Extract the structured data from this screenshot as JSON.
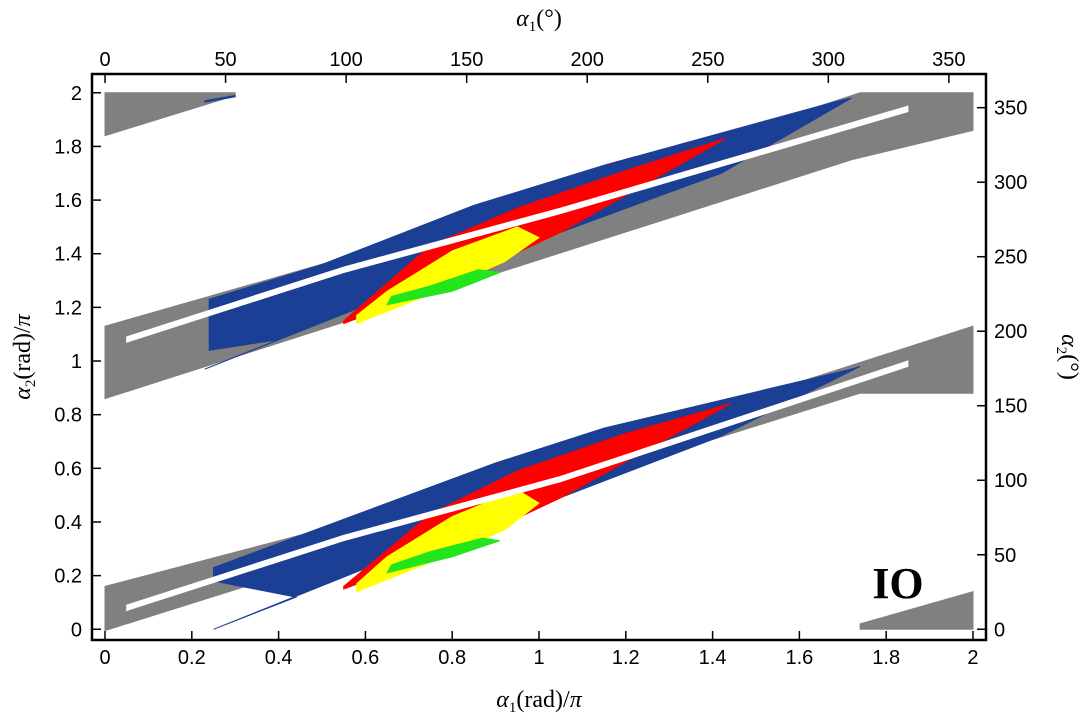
{
  "chart_data": {
    "type": "scatter",
    "title": "",
    "xlabel": "α1(rad)/π",
    "ylabel": "α2(rad)/π",
    "x2label": "α1(°)",
    "y2label": "α2(°)",
    "xlim": [
      -0.03,
      2.03
    ],
    "ylim": [
      -0.04,
      2.07
    ],
    "x2lim": [
      -5.4,
      365.4
    ],
    "y2lim": [
      -7.2,
      372.6
    ],
    "xticks": [
      "0",
      "0.2",
      "0.4",
      "0.6",
      "0.8",
      "1",
      "1.2",
      "1.4",
      "1.6",
      "1.8",
      "2"
    ],
    "yticks": [
      "0",
      "0.2",
      "0.4",
      "0.6",
      "0.8",
      "1",
      "1.2",
      "1.4",
      "1.6",
      "1.8",
      "2"
    ],
    "x2ticks": [
      "0",
      "50",
      "100",
      "150",
      "200",
      "250",
      "300",
      "350"
    ],
    "y2ticks": [
      "0",
      "50",
      "100",
      "150",
      "200",
      "250",
      "300",
      "350"
    ],
    "annotation": "IO",
    "grid": false,
    "series": [
      {
        "name": "gray",
        "color": "#808080",
        "regions": [
          [
            [
              0,
              0.16
            ],
            [
              0,
              -0.005
            ],
            [
              1.74,
              0.88
            ],
            [
              2,
              0.88
            ],
            [
              2,
              1.13
            ],
            [
              1.02,
              0.62
            ],
            [
              0.8,
              0.5
            ]
          ],
          [
            [
              0,
              1.13
            ],
            [
              0,
              0.86
            ],
            [
              1.72,
              1.75
            ],
            [
              2,
              1.86
            ],
            [
              2,
              2
            ],
            [
              1.74,
              2
            ],
            [
              0.8,
              1.5
            ]
          ],
          [
            [
              0,
              2
            ],
            [
              0,
              1.84
            ],
            [
              0.3,
              1.99
            ],
            [
              0.3,
              2
            ]
          ],
          [
            [
              1.74,
              0
            ],
            [
              2,
              0
            ],
            [
              2,
              0.14
            ],
            [
              1.74,
              0.02
            ]
          ]
        ]
      },
      {
        "name": "blue",
        "color": "#1b3f94",
        "regions": [
          [
            [
              0.25,
              0
            ],
            [
              0.62,
              0.24
            ],
            [
              1.0,
              0.46
            ],
            [
              1.42,
              0.72
            ],
            [
              1.74,
              0.98
            ],
            [
              1.72,
              0.97
            ],
            [
              1.15,
              0.75
            ],
            [
              0.9,
              0.62
            ],
            [
              0.5,
              0.38
            ],
            [
              0.25,
              0.23
            ],
            [
              0.25,
              0.18
            ],
            [
              0.44,
              0.12
            ]
          ],
          [
            [
              0.23,
              0.97
            ],
            [
              0.62,
              1.22
            ],
            [
              1.0,
              1.45
            ],
            [
              1.42,
              1.7
            ],
            [
              1.72,
              1.98
            ],
            [
              1.69,
              1.97
            ],
            [
              1.15,
              1.73
            ],
            [
              0.85,
              1.58
            ],
            [
              0.5,
              1.36
            ],
            [
              0.24,
              1.23
            ],
            [
              0.24,
              1.04
            ],
            [
              0.4,
              1.08
            ]
          ],
          [
            [
              0.23,
              1.97
            ],
            [
              0.3,
              1.99
            ],
            [
              0.3,
              1.985
            ],
            [
              0.23,
              1.965
            ]
          ]
        ]
      },
      {
        "name": "red",
        "color": "#ff0000",
        "regions": [
          [
            [
              0.55,
              0.15
            ],
            [
              0.8,
              0.3
            ],
            [
              1.05,
              0.49
            ],
            [
              1.44,
              0.84
            ],
            [
              1.2,
              0.73
            ],
            [
              0.95,
              0.59
            ],
            [
              0.75,
              0.43
            ],
            [
              0.55,
              0.16
            ]
          ],
          [
            [
              0.55,
              1.14
            ],
            [
              0.8,
              1.29
            ],
            [
              1.05,
              1.48
            ],
            [
              1.43,
              1.83
            ],
            [
              1.2,
              1.71
            ],
            [
              0.95,
              1.57
            ],
            [
              0.75,
              1.43
            ],
            [
              0.55,
              1.15
            ]
          ]
        ]
      },
      {
        "name": "yellow",
        "color": "#ffff00",
        "regions": [
          [
            [
              0.58,
              0.14
            ],
            [
              0.75,
              0.25
            ],
            [
              0.92,
              0.37
            ],
            [
              1.0,
              0.47
            ],
            [
              0.95,
              0.52
            ],
            [
              0.8,
              0.42
            ],
            [
              0.65,
              0.27
            ],
            [
              0.58,
              0.17
            ]
          ],
          [
            [
              0.58,
              1.14
            ],
            [
              0.75,
              1.25
            ],
            [
              0.92,
              1.37
            ],
            [
              1.0,
              1.46
            ],
            [
              0.95,
              1.5
            ],
            [
              0.8,
              1.41
            ],
            [
              0.65,
              1.26
            ],
            [
              0.58,
              1.17
            ]
          ]
        ]
      },
      {
        "name": "green",
        "color": "#22e51b",
        "regions": [
          [
            [
              0.65,
              0.21
            ],
            [
              0.8,
              0.27
            ],
            [
              0.91,
              0.33
            ],
            [
              0.87,
              0.34
            ],
            [
              0.75,
              0.29
            ],
            [
              0.66,
              0.24
            ]
          ],
          [
            [
              0.65,
              1.21
            ],
            [
              0.8,
              1.26
            ],
            [
              0.91,
              1.33
            ],
            [
              0.86,
              1.34
            ],
            [
              0.75,
              1.28
            ],
            [
              0.66,
              1.24
            ]
          ]
        ]
      },
      {
        "name": "white-gaps",
        "color": "#ffffff",
        "regions": [
          [
            [
              0.05,
              0.07
            ],
            [
              0.55,
              0.33
            ],
            [
              1.05,
              0.55
            ],
            [
              1.85,
              0.98
            ],
            [
              1.85,
              1.0
            ],
            [
              1.05,
              0.57
            ],
            [
              0.55,
              0.35
            ],
            [
              0.05,
              0.09
            ]
          ],
          [
            [
              0.05,
              1.07
            ],
            [
              0.55,
              1.33
            ],
            [
              1.05,
              1.55
            ],
            [
              1.85,
              1.93
            ],
            [
              1.85,
              1.95
            ],
            [
              1.05,
              1.57
            ],
            [
              0.55,
              1.35
            ],
            [
              0.05,
              1.09
            ]
          ]
        ]
      }
    ]
  }
}
